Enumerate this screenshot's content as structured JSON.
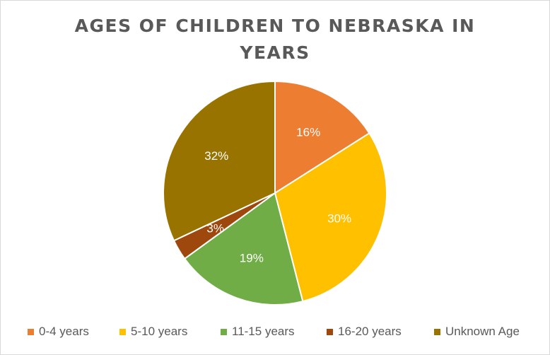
{
  "chart_data": {
    "type": "pie",
    "title": "AGES OF CHILDREN TO NEBRASKA IN YEARS",
    "categories": [
      "0-4 years",
      "5-10 years",
      "11-15 years",
      "16-20 years",
      "Unknown Age"
    ],
    "values": [
      16,
      30,
      19,
      3,
      32
    ],
    "labels": [
      "16%",
      "30%",
      "19%",
      "3%",
      "32%"
    ],
    "colors": [
      "#ED7D31",
      "#FFC000",
      "#70AD47",
      "#9E480E",
      "#997300"
    ],
    "legend_position": "bottom",
    "start_angle": "12 o'clock, clockwise"
  }
}
